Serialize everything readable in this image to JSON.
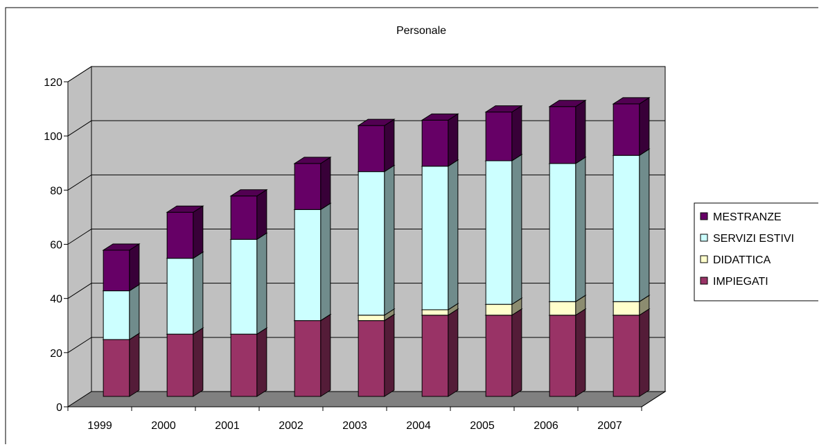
{
  "chart_data": {
    "type": "bar",
    "stacked": true,
    "three_d": true,
    "title": "Personale",
    "categories": [
      "1999",
      "2000",
      "2001",
      "2002",
      "2003",
      "2004",
      "2005",
      "2006",
      "2007"
    ],
    "series": [
      {
        "name": "IMPIEGATI",
        "color": "#993366",
        "values": [
          21,
          23,
          23,
          28,
          28,
          30,
          30,
          30,
          30
        ]
      },
      {
        "name": "DIDATTICA",
        "color": "#FFFFCC",
        "values": [
          0,
          0,
          0,
          0,
          2,
          2,
          4,
          5,
          5
        ]
      },
      {
        "name": "SERVIZI ESTIVI",
        "color": "#CCFFFF",
        "values": [
          18,
          28,
          35,
          41,
          53,
          53,
          53,
          51,
          54
        ]
      },
      {
        "name": "MESTRANZE",
        "color": "#660066",
        "values": [
          15,
          17,
          16,
          17,
          17,
          17,
          18,
          21,
          19
        ]
      }
    ],
    "legend_order": [
      "MESTRANZE",
      "SERVIZI ESTIVI",
      "DIDATTICA",
      "IMPIEGATI"
    ],
    "ylim": [
      0,
      120
    ],
    "yticks": [
      "0",
      "20",
      "40",
      "60",
      "80",
      "100",
      "120"
    ],
    "xlabel": "",
    "ylabel": "",
    "grid": true,
    "legend_position": "right",
    "wall_color": "#C0C0C0",
    "floor_color": "#808080"
  }
}
